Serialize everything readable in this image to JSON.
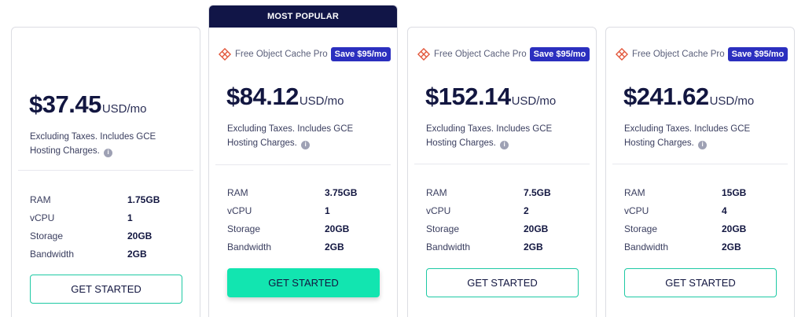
{
  "plans": [
    {
      "popular": false,
      "ribbon": "",
      "promo": null,
      "price": "$37.45",
      "unit": "USD/mo",
      "note": "Excluding Taxes. Includes GCE Hosting Charges.",
      "specs": [
        {
          "label": "RAM",
          "value": "1.75GB"
        },
        {
          "label": "vCPU",
          "value": "1"
        },
        {
          "label": "Storage",
          "value": "20GB"
        },
        {
          "label": "Bandwidth",
          "value": "2GB"
        }
      ],
      "cta": "GET STARTED"
    },
    {
      "popular": true,
      "ribbon": "MOST POPULAR",
      "promo": {
        "text": "Free Object Cache Pro",
        "badge": "Save $95/mo"
      },
      "price": "$84.12",
      "unit": "USD/mo",
      "note": "Excluding Taxes. Includes GCE Hosting Charges.",
      "specs": [
        {
          "label": "RAM",
          "value": "3.75GB"
        },
        {
          "label": "vCPU",
          "value": "1"
        },
        {
          "label": "Storage",
          "value": "20GB"
        },
        {
          "label": "Bandwidth",
          "value": "2GB"
        }
      ],
      "cta": "GET STARTED"
    },
    {
      "popular": false,
      "ribbon": "",
      "promo": {
        "text": "Free Object Cache Pro",
        "badge": "Save $95/mo"
      },
      "price": "$152.14",
      "unit": "USD/mo",
      "note": "Excluding Taxes. Includes GCE Hosting Charges.",
      "specs": [
        {
          "label": "RAM",
          "value": "7.5GB"
        },
        {
          "label": "vCPU",
          "value": "2"
        },
        {
          "label": "Storage",
          "value": "20GB"
        },
        {
          "label": "Bandwidth",
          "value": "2GB"
        }
      ],
      "cta": "GET STARTED"
    },
    {
      "popular": false,
      "ribbon": "",
      "promo": {
        "text": "Free Object Cache Pro",
        "badge": "Save $95/mo"
      },
      "price": "$241.62",
      "unit": "USD/mo",
      "note": "Excluding Taxes. Includes GCE Hosting Charges.",
      "specs": [
        {
          "label": "RAM",
          "value": "15GB"
        },
        {
          "label": "vCPU",
          "value": "4"
        },
        {
          "label": "Storage",
          "value": "20GB"
        },
        {
          "label": "Bandwidth",
          "value": "2GB"
        }
      ],
      "cta": "GET STARTED"
    }
  ],
  "colors": {
    "ribbon": "#111547",
    "save_badge": "#2b2fbf",
    "cta_accent": "#12e5b0",
    "promo_icon": "#e2563a"
  }
}
